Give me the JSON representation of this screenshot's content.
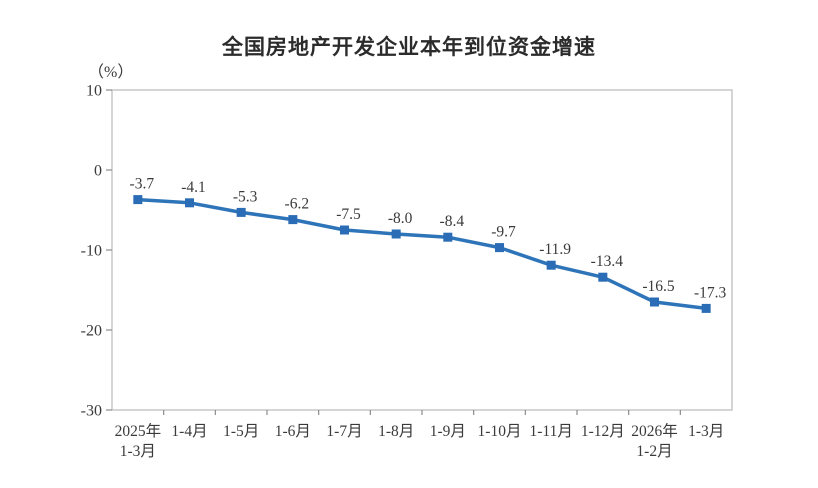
{
  "chart_data": {
    "type": "line",
    "title": "全国房地产开发企业本年到位资金增速",
    "ylabel": "（%）",
    "xlabel": "",
    "categories": [
      "2025年\n1-3月",
      "1-4月",
      "1-5月",
      "1-6月",
      "1-7月",
      "1-8月",
      "1-9月",
      "1-10月",
      "1-11月",
      "1-12月",
      "2026年\n1-2月",
      "1-3月"
    ],
    "values": [
      -3.7,
      -4.1,
      -5.3,
      -6.2,
      -7.5,
      -8.0,
      -8.4,
      -9.7,
      -11.9,
      -13.4,
      -16.5,
      -17.3
    ],
    "data_labels": [
      "-3.7",
      "-4.1",
      "-5.3",
      "-6.2",
      "-7.5",
      "-8.0",
      "-8.4",
      "-9.7",
      "-11.9",
      "-13.4",
      "-16.5",
      "-17.3"
    ],
    "yticks": [
      {
        "value": 10,
        "label": "10"
      },
      {
        "value": 0,
        "label": "0"
      },
      {
        "value": -10,
        "label": "-10"
      },
      {
        "value": -20,
        "label": "-20"
      },
      {
        "value": -30,
        "label": "-30"
      }
    ],
    "ylim": [
      -30,
      10
    ],
    "grid": false,
    "legend": "none",
    "marker": "square",
    "colors": {
      "line": "#2e74b9",
      "marker": "#2a6cb5",
      "border": "#b9b9b9",
      "axis": "#8c8c8c",
      "text": "#3a3a3a"
    }
  }
}
